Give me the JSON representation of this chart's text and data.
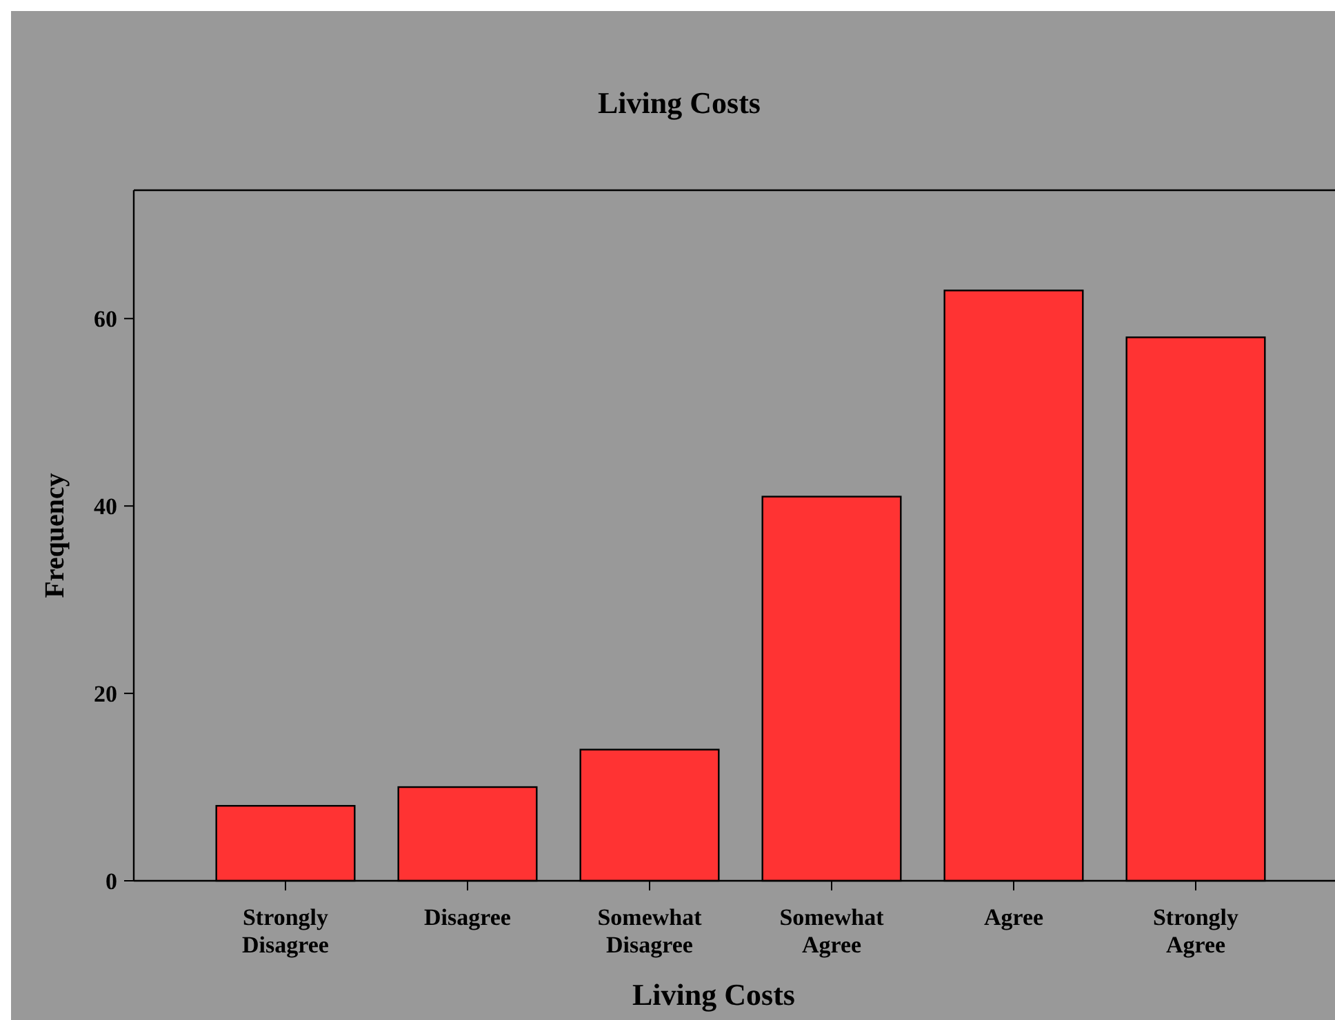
{
  "chart_data": {
    "type": "bar",
    "title": "Living Costs",
    "xlabel": "Living Costs",
    "ylabel": "Frequency",
    "categories": [
      "Strongly Disagree",
      "Disagree",
      "Somewhat Disagree",
      "Somewhat Agree",
      "Agree",
      "Strongly Agree"
    ],
    "values": [
      8,
      10,
      14,
      41,
      63,
      58
    ],
    "color": "#ff3333",
    "ylim": [
      0,
      73.7
    ],
    "yticks": [
      0,
      20,
      40,
      60
    ]
  }
}
